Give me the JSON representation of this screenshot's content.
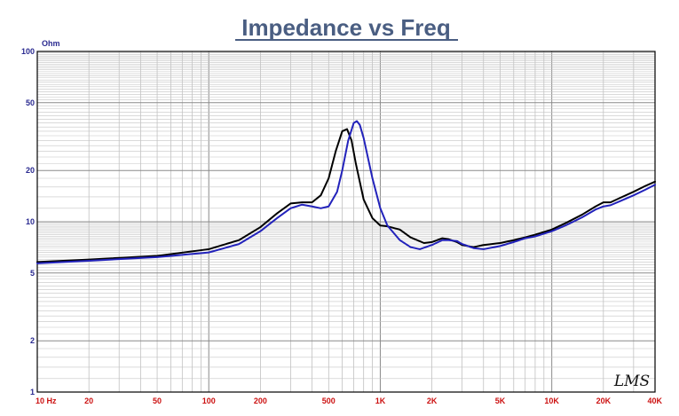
{
  "chart_data": {
    "type": "line",
    "title": "Impedance vs Freq",
    "ylabel": "Ohm",
    "xlabel": "",
    "x_scale": "log",
    "y_scale": "log",
    "xlim": [
      10,
      40000
    ],
    "ylim": [
      1,
      100
    ],
    "grid": true,
    "legend": "none",
    "x_ticks": [
      {
        "value": 10,
        "label": "10  Hz"
      },
      {
        "value": 20,
        "label": "20"
      },
      {
        "value": 50,
        "label": "50"
      },
      {
        "value": 100,
        "label": "100"
      },
      {
        "value": 200,
        "label": "200"
      },
      {
        "value": 500,
        "label": "500"
      },
      {
        "value": 1000,
        "label": "1K"
      },
      {
        "value": 2000,
        "label": "2K"
      },
      {
        "value": 5000,
        "label": "5K"
      },
      {
        "value": 10000,
        "label": "10K"
      },
      {
        "value": 20000,
        "label": "20K"
      },
      {
        "value": 40000,
        "label": "40K"
      }
    ],
    "y_ticks": [
      {
        "value": 100,
        "label": "100"
      },
      {
        "value": 50,
        "label": "50"
      },
      {
        "value": 20,
        "label": "20"
      },
      {
        "value": 10,
        "label": "10"
      },
      {
        "value": 5,
        "label": "5"
      },
      {
        "value": 2,
        "label": "2"
      },
      {
        "value": 1,
        "label": "1"
      }
    ],
    "series": [
      {
        "color": "#000000",
        "x": [
          10,
          20,
          50,
          100,
          150,
          200,
          250,
          300,
          350,
          400,
          450,
          500,
          550,
          600,
          640,
          680,
          720,
          800,
          900,
          1000,
          1100,
          1300,
          1500,
          1800,
          2000,
          2300,
          2500,
          2800,
          3000,
          3500,
          4000,
          5000,
          6000,
          7000,
          8000,
          10000,
          12000,
          15000,
          18000,
          20000,
          22000,
          25000,
          30000,
          35000,
          40000
        ],
        "y": [
          5.8,
          6.0,
          6.3,
          6.9,
          7.8,
          9.3,
          11.2,
          12.8,
          13.0,
          13.0,
          14.3,
          18.0,
          26.0,
          34.0,
          35.0,
          30.0,
          22.0,
          13.5,
          10.5,
          9.5,
          9.4,
          9.0,
          8.1,
          7.5,
          7.6,
          8.0,
          7.9,
          7.6,
          7.3,
          7.1,
          7.3,
          7.5,
          7.8,
          8.1,
          8.4,
          9.0,
          9.8,
          11.0,
          12.3,
          13.0,
          13.0,
          13.8,
          15.0,
          16.2,
          17.2
        ]
      },
      {
        "color": "#2222bb",
        "x": [
          10,
          20,
          50,
          100,
          150,
          200,
          250,
          300,
          350,
          400,
          450,
          500,
          560,
          600,
          650,
          700,
          730,
          760,
          800,
          900,
          1000,
          1100,
          1300,
          1500,
          1700,
          2000,
          2300,
          2500,
          2800,
          3000,
          3500,
          4000,
          5000,
          6000,
          7000,
          8000,
          10000,
          12000,
          15000,
          18000,
          20000,
          22000,
          25000,
          30000,
          35000,
          40000
        ],
        "y": [
          5.7,
          5.9,
          6.2,
          6.6,
          7.4,
          8.8,
          10.5,
          12.0,
          12.6,
          12.3,
          12.0,
          12.3,
          15.0,
          20.0,
          30.0,
          38.0,
          39.0,
          37.0,
          31.0,
          18.0,
          12.0,
          9.5,
          7.8,
          7.1,
          6.9,
          7.3,
          7.8,
          7.8,
          7.7,
          7.4,
          7.0,
          6.9,
          7.2,
          7.6,
          8.0,
          8.2,
          8.8,
          9.5,
          10.6,
          11.8,
          12.3,
          12.5,
          13.2,
          14.3,
          15.4,
          16.5
        ]
      }
    ]
  },
  "watermark": "LMS"
}
